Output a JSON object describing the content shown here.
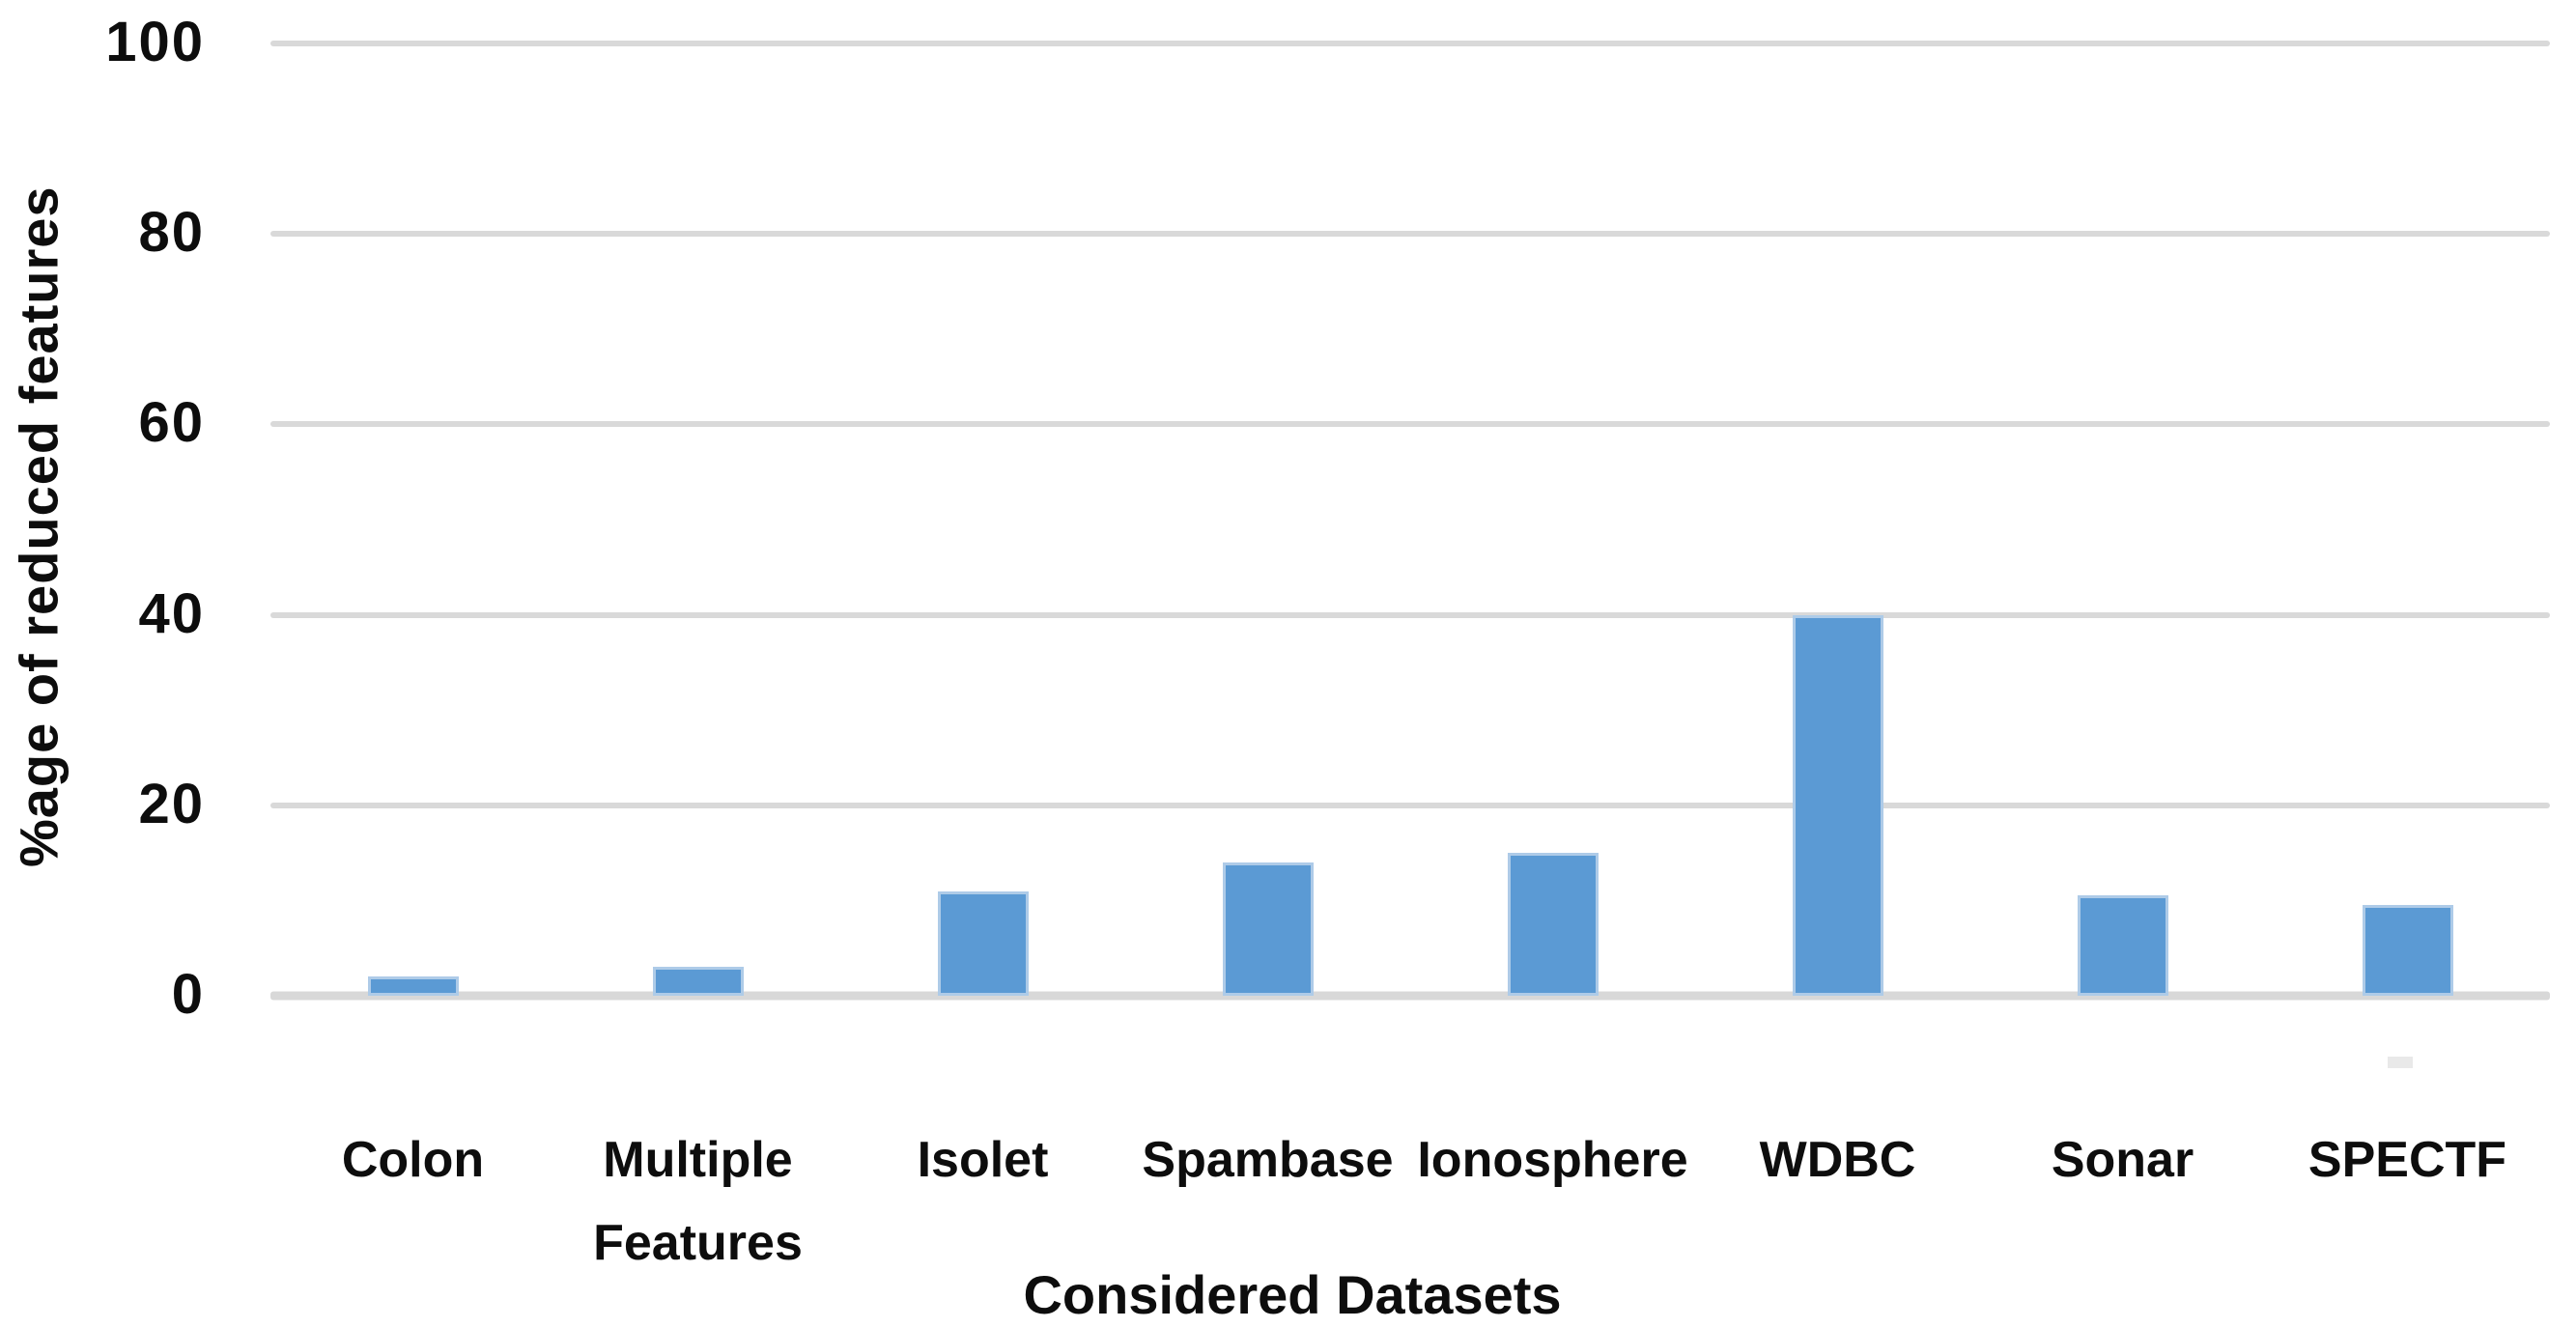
{
  "chart_data": {
    "type": "bar",
    "title": "",
    "xlabel": "Considered Datasets",
    "ylabel": "%age of reduced features",
    "categories": [
      "Colon",
      "Multiple Features",
      "Isolet",
      "Spambase",
      "Ionosphere",
      "WDBC",
      "Sonar",
      "SPECTF"
    ],
    "values": [
      2,
      3,
      11,
      14,
      15,
      40,
      10.5,
      9.5
    ],
    "ylim": [
      0,
      100
    ],
    "yticks": [
      100,
      80,
      60,
      40,
      20,
      0
    ],
    "grid": "horizontal",
    "legend": "none",
    "colors": {
      "bar_fill": "#5b9ad4",
      "bar_border": "#aecbe8",
      "gridline": "#d9d9d9",
      "baseline": "#d8d8d8",
      "text": "#0d0d0d",
      "background": "#ffffff"
    }
  }
}
